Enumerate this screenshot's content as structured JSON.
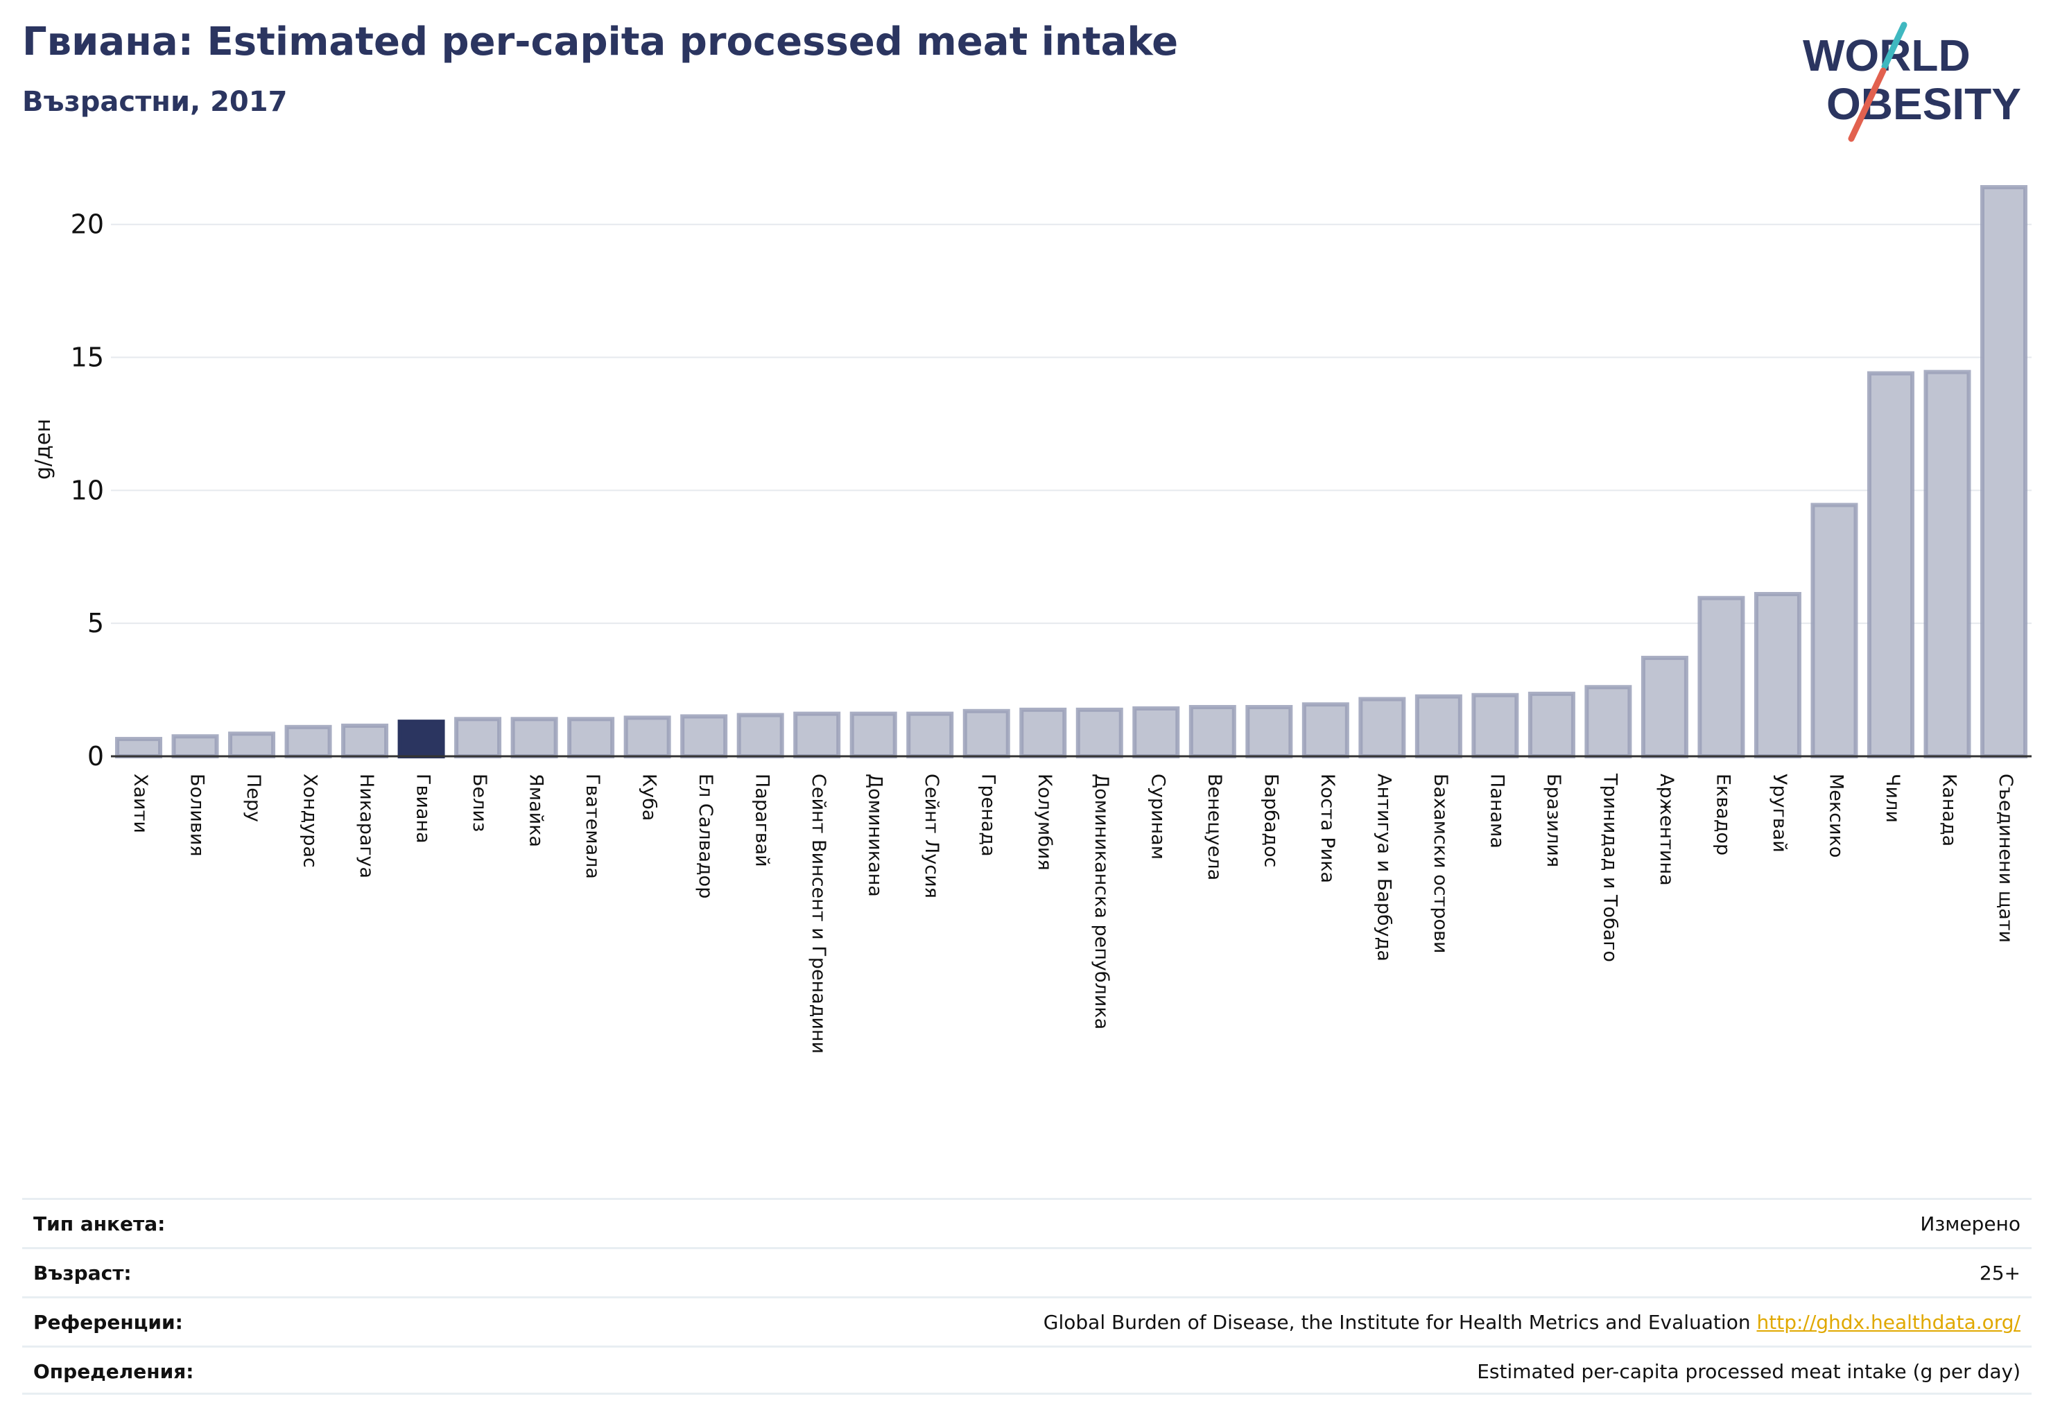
{
  "header": {
    "title": "Гвиана: Estimated per-capita processed meat intake",
    "subtitle": "Възрастни, 2017"
  },
  "logo": {
    "line1": "WORLD",
    "line2": "OBESITY",
    "colors": {
      "text": "#2b3560",
      "slash_teal": "#3fb8c0",
      "slash_red": "#e2614f"
    }
  },
  "chart_data": {
    "type": "bar",
    "ylabel": "g/ден",
    "xlabel": "",
    "ylim": [
      0,
      22
    ],
    "yticks": [
      0,
      5,
      10,
      15,
      20
    ],
    "grid": true,
    "highlight": "Гвиана",
    "colors": {
      "bar": "#c0c4d2",
      "bar_edge": "#9aa0b8",
      "highlight": "#2b3560",
      "grid": "#e6e9ee",
      "axis": "#333333"
    },
    "categories": [
      "Хаити",
      "Боливия",
      "Перу",
      "Хондурас",
      "Никарагуа",
      "Гвиана",
      "Белиз",
      "Ямайка",
      "Гватемала",
      "Куба",
      "Ел Салвадор",
      "Парагвай",
      "Сейнт Винсент и Гренадини",
      "Доминикана",
      "Сейнт Лусия",
      "Гренада",
      "Колумбия",
      "Доминиканска република",
      "Суринам",
      "Венецуела",
      "Барбадос",
      "Коста Рика",
      "Антигуа и Барбуда",
      "Бахамски острови",
      "Панама",
      "Бразилия",
      "Тринидад и Тобаго",
      "Аржентина",
      "Еквадор",
      "Уругвай",
      "Мексико",
      "Чили",
      "Канада",
      "Съединени щати"
    ],
    "values": [
      0.65,
      0.75,
      0.85,
      1.1,
      1.15,
      1.3,
      1.4,
      1.4,
      1.4,
      1.45,
      1.5,
      1.55,
      1.6,
      1.6,
      1.6,
      1.7,
      1.75,
      1.75,
      1.8,
      1.85,
      1.85,
      1.95,
      2.15,
      2.25,
      2.3,
      2.35,
      2.6,
      3.7,
      5.95,
      6.1,
      9.45,
      14.4,
      14.45,
      21.4
    ]
  },
  "info": {
    "survey_type_label": "Тип анкета:",
    "survey_type_value": "Измерено",
    "age_label": "Възраст:",
    "age_value": "25+",
    "references_label": "Референции:",
    "references_value": "Global Burden of Disease, the Institute for Health Metrics and Evaluation",
    "references_link": "http://ghdx.healthdata.org/",
    "definitions_label": "Определения:",
    "definitions_value": "Estimated per-capita processed meat intake (g per day)"
  }
}
